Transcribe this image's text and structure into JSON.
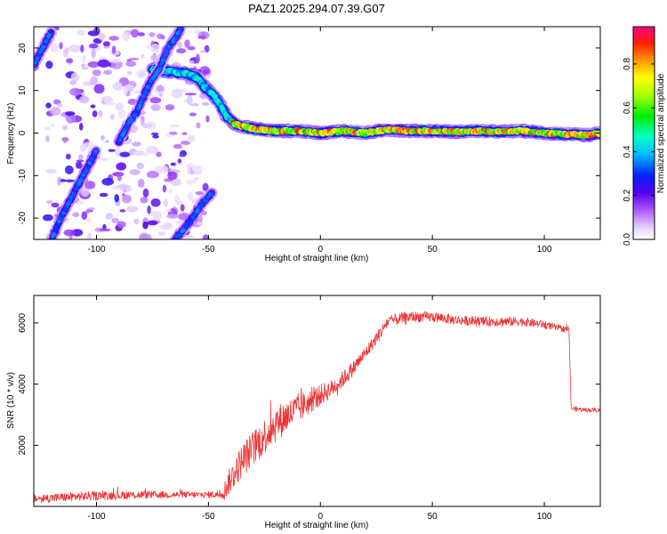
{
  "title": "PAZ1.2025.294.07.39.G07",
  "chart_data": [
    {
      "type": "heatmap",
      "name": "spectrogram",
      "xlabel": "Height of straight line (km)",
      "ylabel": "Frequency (Hz)",
      "xlim": [
        -128,
        125
      ],
      "ylim": [
        -25,
        25
      ],
      "xticks": [
        -100,
        -50,
        0,
        50,
        100
      ],
      "yticks": [
        -20,
        -10,
        0,
        10,
        20
      ],
      "colorbar": {
        "label": "Normalized spectral amplitude",
        "range": [
          0,
          0.97
        ],
        "ticks": [
          "0.0",
          "0.2",
          "0.4",
          "0.6",
          "0.8"
        ]
      },
      "traces": [
        {
          "name": "main-carrier",
          "amplitude": 0.55,
          "x": [
            -75,
            -68,
            -60,
            -55,
            -52,
            -48,
            -45,
            -42,
            -38,
            -30,
            -20,
            -10,
            0,
            10,
            20,
            30,
            40,
            50,
            60,
            70,
            80,
            90,
            100,
            110,
            120,
            125
          ],
          "y": [
            15,
            14.5,
            14,
            13,
            11,
            9,
            7,
            4,
            2,
            1,
            0.5,
            0.5,
            0,
            0.5,
            0,
            0.8,
            0.5,
            0.5,
            0.3,
            0.5,
            0.3,
            0.5,
            0,
            -0.3,
            -0.5,
            0
          ]
        },
        {
          "name": "upper-left-branch",
          "amplitude": 0.35,
          "x": [
            -128,
            -124,
            -120
          ],
          "y": [
            16,
            20,
            24
          ]
        },
        {
          "name": "lower-left-branch",
          "amplitude": 0.35,
          "x": [
            -120,
            -116,
            -112,
            -108,
            -104,
            -100
          ],
          "y": [
            -25,
            -20,
            -16,
            -12,
            -8,
            -4
          ]
        },
        {
          "name": "mid-branch",
          "amplitude": 0.3,
          "x": [
            -90,
            -86,
            -82,
            -76,
            -72,
            -68,
            -64,
            -62
          ],
          "y": [
            -2,
            2,
            5,
            12,
            15,
            20,
            23,
            25
          ]
        },
        {
          "name": "lower-right-branch",
          "amplitude": 0.28,
          "x": [
            -65,
            -60,
            -56,
            -52,
            -48
          ],
          "y": [
            -25,
            -22,
            -19,
            -16,
            -14
          ]
        }
      ]
    },
    {
      "type": "line",
      "name": "snr",
      "xlabel": "Height of straight line (km)",
      "ylabel": "SNR (10 * v/v)",
      "xlim": [
        -128,
        125
      ],
      "ylim": [
        0,
        6900
      ],
      "xticks": [
        -100,
        -50,
        0,
        50,
        100
      ],
      "yticks": [
        2000,
        4000,
        6000
      ],
      "color": "#ee3333",
      "series": [
        {
          "name": "SNR",
          "x": [
            -128,
            -100,
            -80,
            -60,
            -50,
            -45,
            -43,
            -40,
            -35,
            -30,
            -25,
            -20,
            -15,
            -10,
            -5,
            0,
            5,
            10,
            15,
            20,
            25,
            28,
            30,
            40,
            50,
            60,
            70,
            80,
            90,
            100,
            105,
            110,
            111,
            112,
            120,
            125
          ],
          "y": [
            250,
            350,
            380,
            380,
            380,
            400,
            500,
            900,
            1500,
            1900,
            2300,
            2700,
            2950,
            3200,
            3400,
            3650,
            3850,
            4150,
            4550,
            5000,
            5500,
            5800,
            6050,
            6200,
            6200,
            6100,
            6050,
            6050,
            6050,
            5950,
            5850,
            5800,
            5800,
            3200,
            3150,
            3150
          ],
          "noise": [
            140,
            150,
            130,
            100,
            110,
            140,
            300,
            450,
            550,
            600,
            600,
            600,
            550,
            500,
            400,
            350,
            300,
            280,
            250,
            220,
            220,
            210,
            200,
            180,
            170,
            160,
            160,
            160,
            150,
            130,
            110,
            100,
            90,
            80,
            70,
            70
          ]
        }
      ]
    }
  ]
}
